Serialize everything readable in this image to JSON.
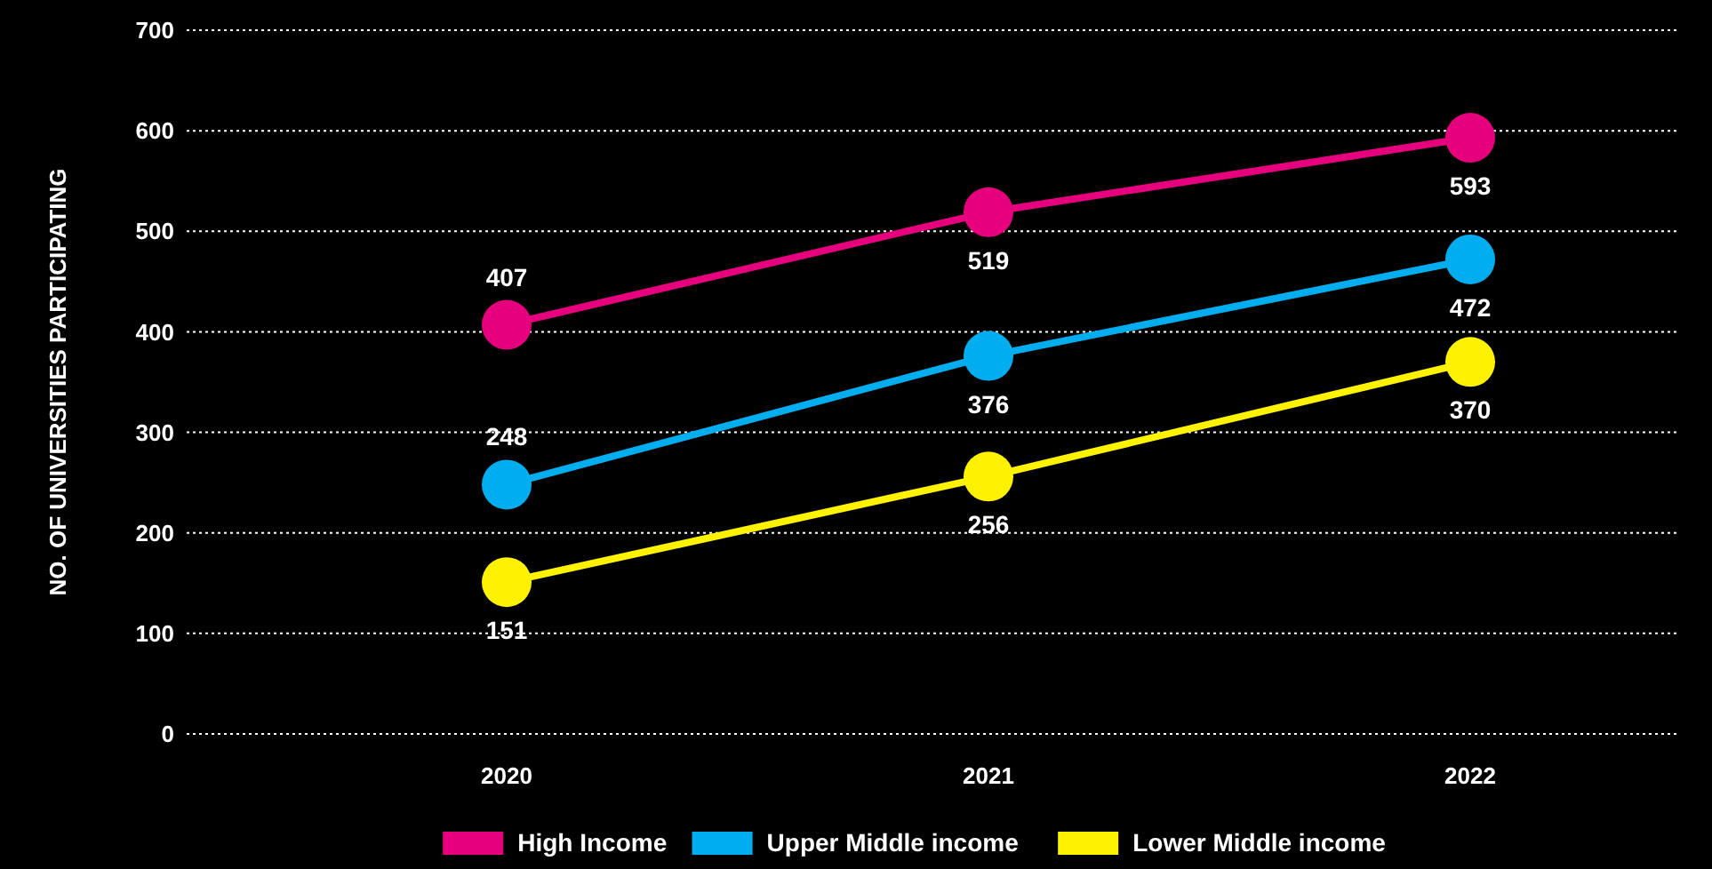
{
  "chart_data": {
    "type": "line",
    "ylabel": "NO. OF UNIVERSITIES PARTICIPATING",
    "categories": [
      "2020",
      "2021",
      "2022"
    ],
    "series": [
      {
        "name": "High Income",
        "color": "#e6007e",
        "values": [
          407,
          519,
          593
        ]
      },
      {
        "name": "Upper Middle income",
        "color": "#00aeef",
        "values": [
          248,
          376,
          472
        ]
      },
      {
        "name": "Lower Middle income",
        "color": "#fff200",
        "values": [
          151,
          256,
          370
        ]
      }
    ],
    "ylim": [
      0,
      700
    ],
    "yticks": [
      0,
      100,
      200,
      300,
      400,
      500,
      600,
      700
    ],
    "grid": "y",
    "legend": "bottom",
    "marker": "circle",
    "line_style": "solid",
    "data_labels": true
  }
}
